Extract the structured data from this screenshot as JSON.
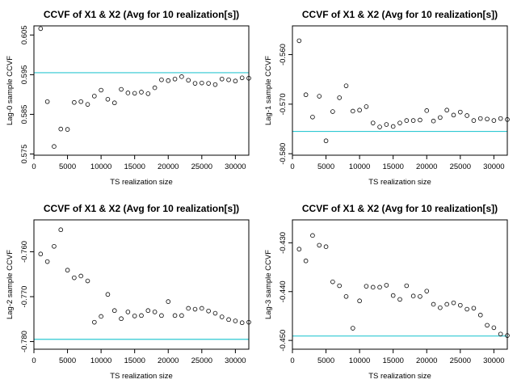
{
  "chart_data": [
    {
      "type": "scatter",
      "title": "CCVF of X1 & X2 (Avg for 10 realization[s])",
      "xlabel": "TS realization size",
      "ylabel": "Lag-0 sample CCVF",
      "xlim": [
        0,
        32000
      ],
      "ylim": [
        0.5747,
        0.6073
      ],
      "xticks": [
        "0",
        "5000",
        "10000",
        "15000",
        "20000",
        "25000",
        "30000"
      ],
      "yticks": [
        "0.575",
        "0.585",
        "0.595",
        "0.605"
      ],
      "reference_line": 0.5955,
      "reference_color": "#2ec8d2",
      "x": [
        1000,
        2000,
        3000,
        4000,
        5000,
        6000,
        7000,
        8000,
        9000,
        10000,
        11000,
        12000,
        13000,
        14000,
        15000,
        16000,
        17000,
        18000,
        19000,
        20000,
        21000,
        22000,
        23000,
        24000,
        25000,
        26000,
        27000,
        28000,
        29000,
        30000,
        31000,
        32000
      ],
      "y": [
        0.6066,
        0.5882,
        0.5769,
        0.5813,
        0.5812,
        0.588,
        0.5882,
        0.5875,
        0.5896,
        0.5911,
        0.5888,
        0.5879,
        0.5913,
        0.5904,
        0.5903,
        0.5906,
        0.5902,
        0.5917,
        0.5937,
        0.5935,
        0.5939,
        0.5945,
        0.5936,
        0.5928,
        0.5929,
        0.5928,
        0.5925,
        0.5939,
        0.5937,
        0.5934,
        0.5942,
        0.5941
      ]
    },
    {
      "type": "scatter",
      "title": "CCVF of X1 & X2 (Avg for 10 realization[s])",
      "xlabel": "TS realization size",
      "ylabel": "Lag-1 sample CCVF",
      "xlim": [
        0,
        32000
      ],
      "ylim": [
        -0.5803,
        -0.5542
      ],
      "xticks": [
        "0",
        "5000",
        "10000",
        "15000",
        "20000",
        "25000",
        "30000"
      ],
      "yticks": [
        "-0.580",
        "-0.570",
        "-0.560"
      ],
      "reference_line": -0.5755,
      "reference_color": "#2ec8d2",
      "x": [
        1000,
        2000,
        3000,
        4000,
        5000,
        6000,
        7000,
        8000,
        9000,
        10000,
        11000,
        12000,
        13000,
        14000,
        15000,
        16000,
        17000,
        18000,
        19000,
        20000,
        21000,
        22000,
        23000,
        24000,
        25000,
        26000,
        27000,
        28000,
        29000,
        30000,
        31000,
        32000
      ],
      "y": [
        -0.5572,
        -0.5681,
        -0.5726,
        -0.5684,
        -0.5774,
        -0.5715,
        -0.5687,
        -0.5663,
        -0.5714,
        -0.5712,
        -0.5705,
        -0.5738,
        -0.5746,
        -0.5741,
        -0.5745,
        -0.5738,
        -0.5733,
        -0.5733,
        -0.5732,
        -0.5713,
        -0.5734,
        -0.5727,
        -0.5712,
        -0.5722,
        -0.5716,
        -0.5723,
        -0.5733,
        -0.5729,
        -0.573,
        -0.5733,
        -0.5729,
        -0.5731
      ]
    },
    {
      "type": "scatter",
      "title": "CCVF of X1 & X2 (Avg for 10 realization[s])",
      "xlabel": "TS realization size",
      "ylabel": "Lag-2 sample CCVF",
      "xlim": [
        0,
        32000
      ],
      "ylim": [
        -0.7817,
        -0.7529
      ],
      "xticks": [
        "0",
        "5000",
        "10000",
        "15000",
        "20000",
        "25000",
        "30000"
      ],
      "yticks": [
        "-0.780",
        "-0.770",
        "-0.760"
      ],
      "reference_line": -0.7795,
      "reference_color": "#2ec8d2",
      "x": [
        1000,
        2000,
        3000,
        4000,
        5000,
        6000,
        7000,
        8000,
        9000,
        10000,
        11000,
        12000,
        13000,
        14000,
        15000,
        16000,
        17000,
        18000,
        19000,
        20000,
        21000,
        22000,
        23000,
        24000,
        25000,
        26000,
        27000,
        28000,
        29000,
        30000,
        31000,
        32000
      ],
      "y": [
        -0.7605,
        -0.7622,
        -0.7588,
        -0.7551,
        -0.7641,
        -0.7658,
        -0.7654,
        -0.7665,
        -0.7757,
        -0.7744,
        -0.7695,
        -0.7731,
        -0.7749,
        -0.7734,
        -0.7743,
        -0.7742,
        -0.7731,
        -0.7734,
        -0.7742,
        -0.7711,
        -0.7742,
        -0.7742,
        -0.7726,
        -0.7728,
        -0.7726,
        -0.7732,
        -0.7737,
        -0.7745,
        -0.7751,
        -0.7754,
        -0.7758,
        -0.7757
      ]
    },
    {
      "type": "scatter",
      "title": "CCVF of X1 & X2 (Avg for 10 realization[s])",
      "xlabel": "TS realization size",
      "ylabel": "Lag-3 sample CCVF",
      "xlim": [
        0,
        32000
      ],
      "ylim": [
        -0.4518,
        -0.4253
      ],
      "xticks": [
        "0",
        "5000",
        "10000",
        "15000",
        "20000",
        "25000",
        "30000"
      ],
      "yticks": [
        "-0.450",
        "-0.440",
        "-0.430"
      ],
      "reference_line": -0.4491,
      "reference_color": "#2ec8d2",
      "x": [
        1000,
        2000,
        3000,
        4000,
        5000,
        6000,
        7000,
        8000,
        9000,
        10000,
        11000,
        12000,
        13000,
        14000,
        15000,
        16000,
        17000,
        18000,
        19000,
        20000,
        21000,
        22000,
        23000,
        24000,
        25000,
        26000,
        27000,
        28000,
        29000,
        30000,
        31000,
        32000
      ],
      "y": [
        -0.4313,
        -0.4337,
        -0.4285,
        -0.4305,
        -0.4308,
        -0.438,
        -0.4388,
        -0.441,
        -0.4475,
        -0.4419,
        -0.4389,
        -0.4391,
        -0.4391,
        -0.4387,
        -0.4408,
        -0.4416,
        -0.4388,
        -0.4409,
        -0.441,
        -0.4399,
        -0.4426,
        -0.4433,
        -0.4426,
        -0.4423,
        -0.4428,
        -0.4436,
        -0.4434,
        -0.4448,
        -0.4469,
        -0.4474,
        -0.4487,
        -0.449
      ]
    }
  ]
}
